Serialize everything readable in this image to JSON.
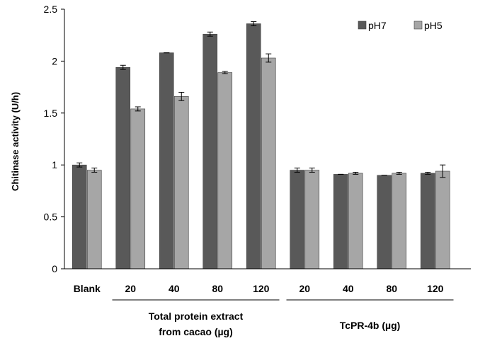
{
  "chart_data": {
    "type": "bar",
    "ylabel": "Chitinase activity (U/h)",
    "ylim": [
      0,
      2.5
    ],
    "yticks": [
      "0",
      "0.5",
      "1",
      "1.5",
      "2",
      "2.5"
    ],
    "categories": [
      "Blank",
      "20",
      "40",
      "80",
      "120",
      "20",
      "40",
      "80",
      "120"
    ],
    "groups": [
      {
        "label_line1": "Total protein extract",
        "label_line2": "from cacao (µg)",
        "from": 1,
        "to": 4
      },
      {
        "label_line1": "TcPR-4b (µg)",
        "label_line2": "",
        "from": 5,
        "to": 8
      }
    ],
    "series": [
      {
        "name": "pH7",
        "color": "#595959",
        "values": [
          1.0,
          1.94,
          2.08,
          2.26,
          2.36,
          0.95,
          0.91,
          0.9,
          0.92
        ],
        "errors": [
          0.02,
          0.02,
          0.0,
          0.02,
          0.02,
          0.02,
          0.0,
          0.0,
          0.01
        ]
      },
      {
        "name": "pH5",
        "color": "#a6a6a6",
        "values": [
          0.95,
          1.54,
          1.66,
          1.89,
          2.03,
          0.95,
          0.92,
          0.92,
          0.94
        ],
        "errors": [
          0.02,
          0.02,
          0.04,
          0.01,
          0.04,
          0.02,
          0.01,
          0.01,
          0.06
        ]
      }
    ],
    "legend_position": "top-right",
    "grid": false
  }
}
